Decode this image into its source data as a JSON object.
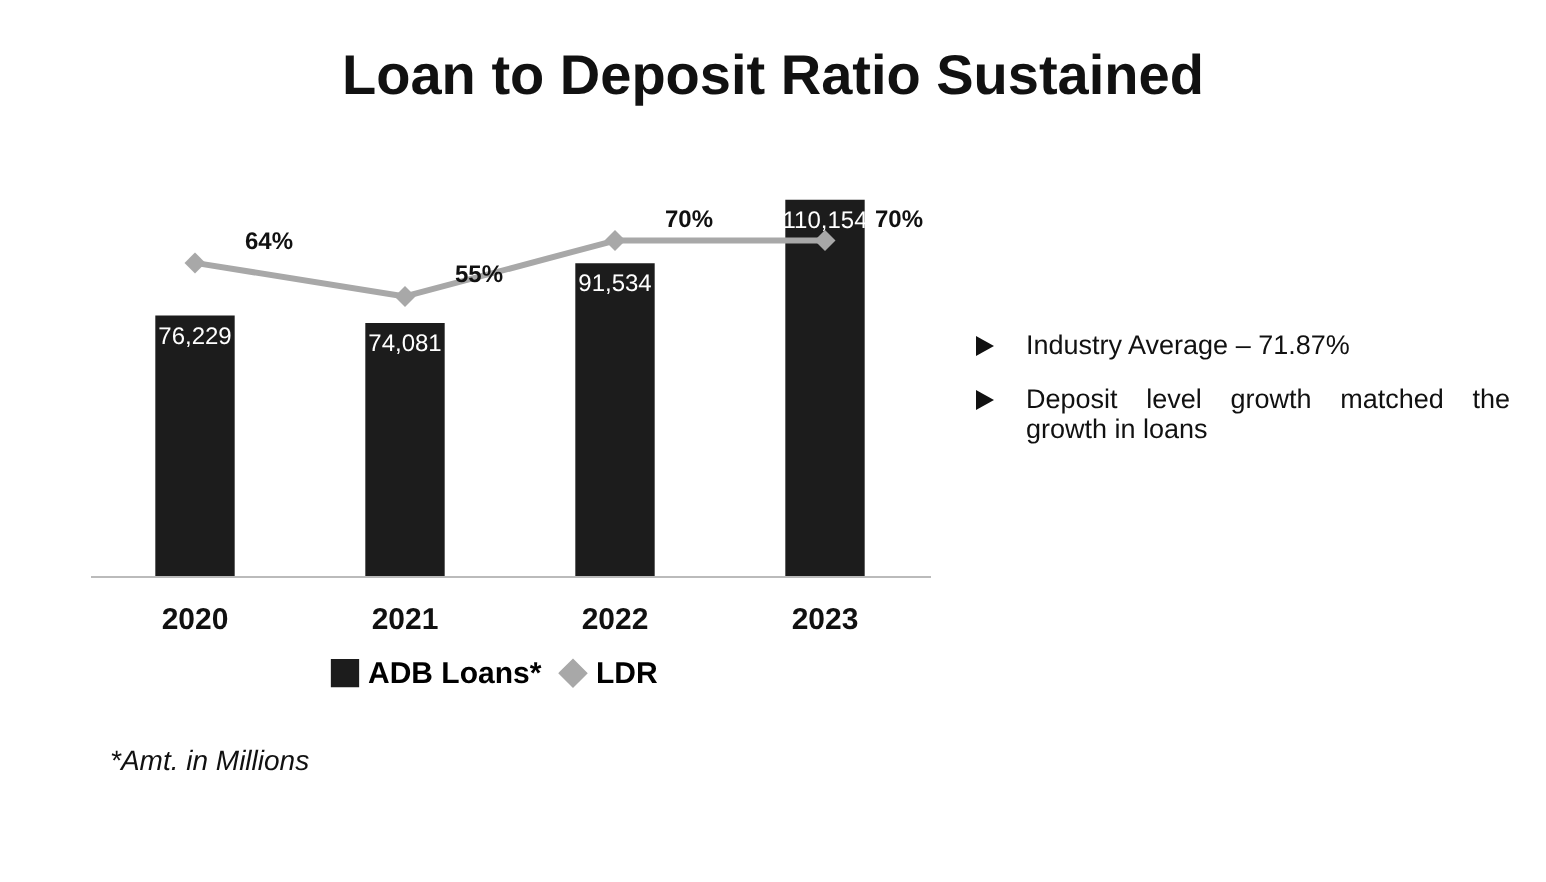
{
  "chart_data": {
    "type": "bar",
    "title": "Loan to Deposit Ratio Sustained",
    "categories": [
      "2020",
      "2021",
      "2022",
      "2023"
    ],
    "series": [
      {
        "name": "ADB Loans*",
        "color": "#1c1c1c",
        "values": [
          76229,
          74081,
          91534,
          110154
        ],
        "value_labels": [
          "76,229",
          "74,081",
          "91,534",
          "110,154"
        ]
      },
      {
        "name": "LDR",
        "type": "line",
        "axis": "y2",
        "color": "#a8a8a8",
        "values": [
          64,
          55,
          70,
          70
        ],
        "value_labels": [
          "64%",
          "55%",
          "70%",
          "70%"
        ]
      }
    ],
    "marker": "diamond",
    "line_style": "solid",
    "legend": "bottom",
    "tick_labels": "x",
    "annotations": [
      "Industry Average – 71.87%",
      "Deposit level growth matched the growth in loans",
      "*Amt. in Millions"
    ]
  }
}
